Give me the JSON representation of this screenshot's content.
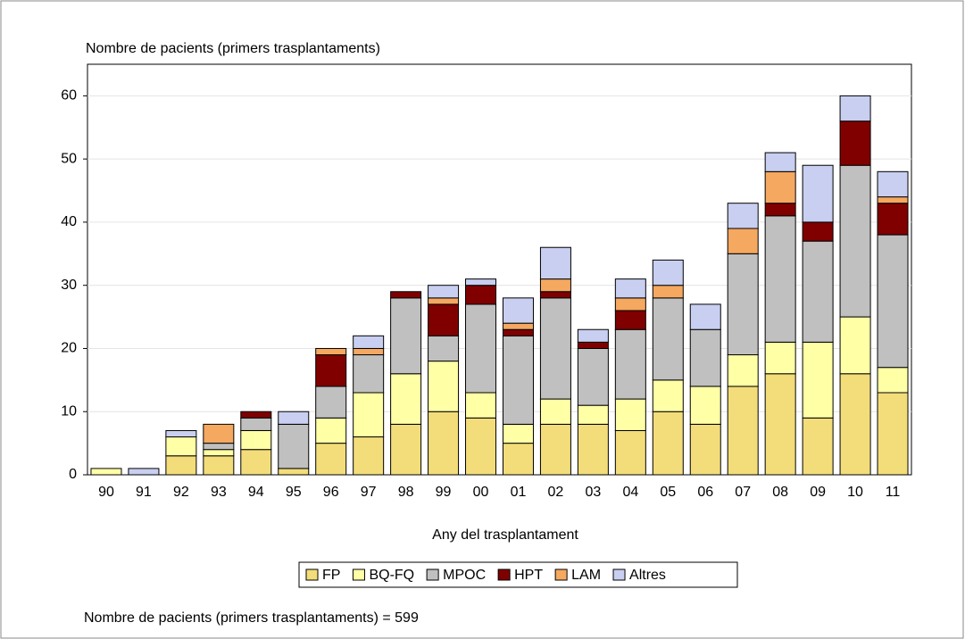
{
  "chart_data": {
    "type": "stacked_bar",
    "y_label": "Nombre de pacients (primers trasplantaments)",
    "x_label": "Any del trasplantament",
    "note": "Nombre de pacients (primers trasplantaments) = 599",
    "categories": [
      "90",
      "91",
      "92",
      "93",
      "94",
      "95",
      "96",
      "97",
      "98",
      "99",
      "00",
      "01",
      "02",
      "03",
      "04",
      "05",
      "06",
      "07",
      "08",
      "09",
      "10",
      "11"
    ],
    "series": [
      {
        "name": "FP",
        "color": "#f3dd7a",
        "values": [
          0,
          0,
          3,
          3,
          4,
          1,
          5,
          6,
          8,
          10,
          9,
          5,
          8,
          8,
          7,
          10,
          8,
          14,
          16,
          9,
          16,
          13
        ]
      },
      {
        "name": "BQ-FQ",
        "color": "#ffffa6",
        "values": [
          1,
          0,
          3,
          1,
          3,
          0,
          4,
          7,
          8,
          8,
          4,
          3,
          4,
          3,
          5,
          5,
          6,
          5,
          5,
          12,
          9,
          4
        ]
      },
      {
        "name": "MPOC",
        "color": "#c0c0c0",
        "values": [
          0,
          0,
          0,
          1,
          2,
          7,
          5,
          6,
          12,
          4,
          14,
          14,
          16,
          9,
          11,
          13,
          9,
          16,
          20,
          16,
          24,
          21
        ]
      },
      {
        "name": "HPT",
        "color": "#800000",
        "values": [
          0,
          0,
          0,
          0,
          1,
          0,
          5,
          0,
          1,
          5,
          3,
          1,
          1,
          1,
          3,
          0,
          0,
          0,
          2,
          3,
          7,
          5
        ]
      },
      {
        "name": "LAM",
        "color": "#f5a860",
        "values": [
          0,
          0,
          0,
          3,
          0,
          0,
          1,
          1,
          0,
          1,
          0,
          1,
          2,
          0,
          2,
          2,
          0,
          4,
          5,
          0,
          0,
          1
        ]
      },
      {
        "name": "Altres",
        "color": "#c8cff0",
        "values": [
          0,
          1,
          1,
          0,
          0,
          2,
          0,
          2,
          0,
          2,
          1,
          4,
          5,
          2,
          3,
          4,
          4,
          4,
          3,
          9,
          4,
          4
        ]
      }
    ],
    "ylim": [
      0,
      65
    ],
    "yticks": [
      0,
      10,
      20,
      30,
      40,
      50,
      60
    ],
    "grid": true
  }
}
